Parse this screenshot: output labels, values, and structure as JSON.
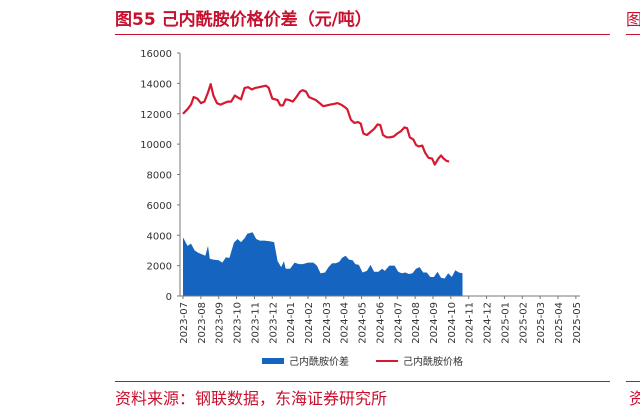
{
  "header": {
    "title": "图55  己内酰胺价格价差（元/吨）",
    "right_fragment": "图"
  },
  "footer": {
    "source": "资料来源：钢联数据，东海证券研究所",
    "right_fragment": "资"
  },
  "colors": {
    "accent": "#c8102e",
    "spread_fill": "#1565c0",
    "price_line": "#d7192f"
  },
  "chart_data": {
    "type": "line",
    "x_ticks": [
      "2023-07",
      "2023-08",
      "2023-09",
      "2023-10",
      "2023-11",
      "2023-12",
      "2024-01",
      "2024-02",
      "2024-03",
      "2024-04",
      "2024-05",
      "2024-06",
      "2024-07",
      "2024-08",
      "2024-09",
      "2024-10",
      "2024-11",
      "2024-12",
      "2025-01",
      "2025-02",
      "2025-03",
      "2025-04",
      "2025-05"
    ],
    "y_ticks": [
      0,
      2000,
      4000,
      6000,
      8000,
      10000,
      12000,
      14000,
      16000
    ],
    "ylim": [
      0,
      16000
    ],
    "grid": false,
    "legend_position": "bottom",
    "series": [
      {
        "name": "己内酰胺价差",
        "kind": "area",
        "points": [
          [
            0.0,
            3850
          ],
          [
            0.05,
            3750
          ],
          [
            0.25,
            3300
          ],
          [
            0.45,
            3450
          ],
          [
            0.65,
            3000
          ],
          [
            0.85,
            2850
          ],
          [
            1.05,
            2750
          ],
          [
            1.25,
            2650
          ],
          [
            1.4,
            3300
          ],
          [
            1.5,
            2450
          ],
          [
            1.7,
            2400
          ],
          [
            2.0,
            2350
          ],
          [
            2.2,
            2200
          ],
          [
            2.4,
            2550
          ],
          [
            2.6,
            2500
          ],
          [
            2.85,
            3500
          ],
          [
            3.05,
            3750
          ],
          [
            3.25,
            3550
          ],
          [
            3.45,
            3800
          ],
          [
            3.6,
            4100
          ],
          [
            3.9,
            4200
          ],
          [
            4.1,
            3750
          ],
          [
            4.3,
            3650
          ],
          [
            4.55,
            3650
          ],
          [
            4.85,
            3600
          ],
          [
            5.1,
            3550
          ],
          [
            5.3,
            2300
          ],
          [
            5.5,
            1900
          ],
          [
            5.65,
            2300
          ],
          [
            5.75,
            1800
          ],
          [
            6.0,
            1800
          ],
          [
            6.25,
            2200
          ],
          [
            6.5,
            2100
          ],
          [
            6.7,
            2100
          ],
          [
            7.0,
            2200
          ],
          [
            7.3,
            2200
          ],
          [
            7.5,
            2000
          ],
          [
            7.7,
            1500
          ],
          [
            7.95,
            1550
          ],
          [
            8.15,
            1900
          ],
          [
            8.35,
            2150
          ],
          [
            8.55,
            2150
          ],
          [
            8.75,
            2250
          ],
          [
            8.9,
            2500
          ],
          [
            9.1,
            2650
          ],
          [
            9.3,
            2400
          ],
          [
            9.5,
            2350
          ],
          [
            9.65,
            2100
          ],
          [
            9.85,
            2050
          ],
          [
            10.05,
            1550
          ],
          [
            10.3,
            1650
          ],
          [
            10.5,
            2050
          ],
          [
            10.7,
            1600
          ],
          [
            10.95,
            1600
          ],
          [
            11.15,
            1800
          ],
          [
            11.3,
            1650
          ],
          [
            11.55,
            2000
          ],
          [
            11.85,
            2000
          ],
          [
            12.05,
            1600
          ],
          [
            12.25,
            1500
          ],
          [
            12.45,
            1550
          ],
          [
            12.65,
            1450
          ],
          [
            12.85,
            1500
          ],
          [
            13.05,
            1800
          ],
          [
            13.25,
            1900
          ],
          [
            13.45,
            1550
          ],
          [
            13.65,
            1550
          ],
          [
            13.85,
            1250
          ],
          [
            14.05,
            1250
          ],
          [
            14.25,
            1600
          ],
          [
            14.45,
            1200
          ],
          [
            14.65,
            1150
          ],
          [
            14.85,
            1500
          ],
          [
            15.05,
            1250
          ],
          [
            15.25,
            1700
          ],
          [
            15.45,
            1550
          ],
          [
            15.65,
            1500
          ]
        ]
      },
      {
        "name": "己内酰胺价格",
        "kind": "line",
        "points": [
          [
            0.0,
            12000
          ],
          [
            0.25,
            12300
          ],
          [
            0.45,
            12600
          ],
          [
            0.6,
            13100
          ],
          [
            0.8,
            13000
          ],
          [
            1.0,
            12700
          ],
          [
            1.2,
            12800
          ],
          [
            1.4,
            13400
          ],
          [
            1.55,
            13950
          ],
          [
            1.7,
            13200
          ],
          [
            1.9,
            12700
          ],
          [
            2.1,
            12600
          ],
          [
            2.3,
            12700
          ],
          [
            2.5,
            12800
          ],
          [
            2.7,
            12800
          ],
          [
            2.9,
            13200
          ],
          [
            3.1,
            13050
          ],
          [
            3.25,
            12950
          ],
          [
            3.45,
            13700
          ],
          [
            3.65,
            13750
          ],
          [
            3.85,
            13600
          ],
          [
            4.05,
            13700
          ],
          [
            4.25,
            13750
          ],
          [
            4.45,
            13800
          ],
          [
            4.65,
            13850
          ],
          [
            4.8,
            13700
          ],
          [
            5.0,
            13000
          ],
          [
            5.15,
            12950
          ],
          [
            5.3,
            12900
          ],
          [
            5.45,
            12550
          ],
          [
            5.6,
            12550
          ],
          [
            5.75,
            12950
          ],
          [
            5.95,
            12900
          ],
          [
            6.15,
            12800
          ],
          [
            6.35,
            13100
          ],
          [
            6.55,
            13450
          ],
          [
            6.7,
            13550
          ],
          [
            6.9,
            13450
          ],
          [
            7.05,
            13100
          ],
          [
            7.25,
            13000
          ],
          [
            7.45,
            12900
          ],
          [
            7.65,
            12700
          ],
          [
            7.85,
            12500
          ],
          [
            8.05,
            12550
          ],
          [
            8.25,
            12600
          ],
          [
            8.45,
            12650
          ],
          [
            8.65,
            12700
          ],
          [
            8.85,
            12600
          ],
          [
            9.05,
            12450
          ],
          [
            9.2,
            12300
          ],
          [
            9.4,
            11600
          ],
          [
            9.6,
            11400
          ],
          [
            9.8,
            11450
          ],
          [
            9.95,
            11350
          ],
          [
            10.1,
            10700
          ],
          [
            10.3,
            10600
          ],
          [
            10.5,
            10800
          ],
          [
            10.7,
            11000
          ],
          [
            10.9,
            11300
          ],
          [
            11.05,
            11250
          ],
          [
            11.2,
            10600
          ],
          [
            11.4,
            10450
          ],
          [
            11.6,
            10450
          ],
          [
            11.8,
            10500
          ],
          [
            12.0,
            10700
          ],
          [
            12.2,
            10850
          ],
          [
            12.4,
            11100
          ],
          [
            12.55,
            11050
          ],
          [
            12.7,
            10450
          ],
          [
            12.9,
            10300
          ],
          [
            13.05,
            9950
          ],
          [
            13.2,
            9850
          ],
          [
            13.4,
            9900
          ],
          [
            13.55,
            9450
          ],
          [
            13.75,
            9100
          ],
          [
            13.95,
            9050
          ],
          [
            14.1,
            8650
          ],
          [
            14.3,
            9050
          ],
          [
            14.45,
            9250
          ],
          [
            14.6,
            9050
          ],
          [
            14.75,
            8900
          ],
          [
            14.9,
            8850
          ]
        ]
      }
    ]
  }
}
